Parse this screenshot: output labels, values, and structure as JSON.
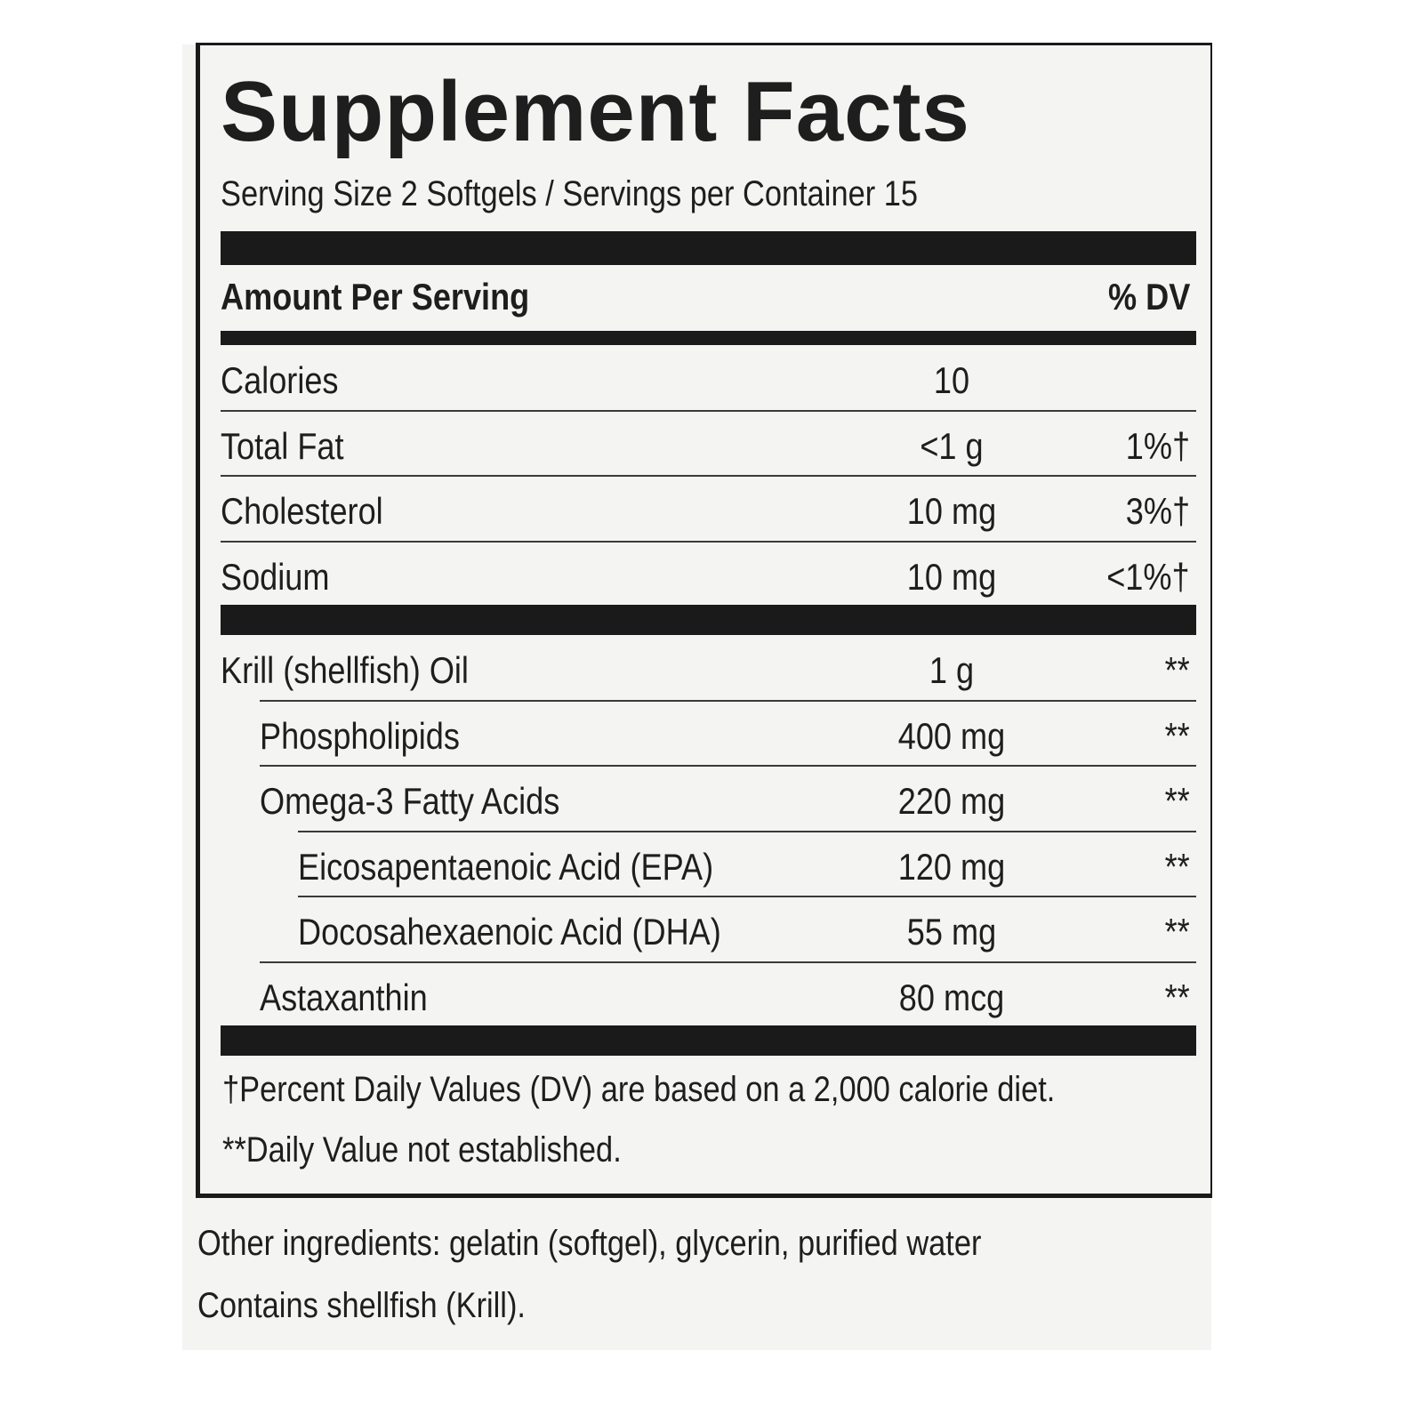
{
  "label": {
    "title": "Supplement Facts",
    "serving": "Serving Size 2 Softgels / Servings per Container 15",
    "header": {
      "left": "Amount Per Serving",
      "right": "% DV"
    },
    "sections": [
      [
        {
          "name": "Calories",
          "amount": "10"
        },
        {
          "name": "Total Fat",
          "amount": "<1 g",
          "dv": "1%†"
        },
        {
          "name": "Cholesterol",
          "amount": "10 mg",
          "dv": "3%†"
        },
        {
          "name": "Sodium",
          "amount": "10 mg",
          "dv": "<1%†"
        }
      ],
      [
        {
          "name": "Krill (shellfish) Oil",
          "amount": "1 g",
          "dv": "**",
          "children": [
            {
              "name": "Phospholipids",
              "amount": "400 mg",
              "dv": "**"
            },
            {
              "name": "Omega-3 Fatty Acids",
              "amount": "220 mg",
              "dv": "**",
              "children": [
                {
                  "name": "Eicosapentaenoic Acid (EPA)",
                  "amount": "120 mg",
                  "dv": "**"
                },
                {
                  "name": "Docosahexaenoic Acid (DHA)",
                  "amount": "55 mg",
                  "dv": "**"
                }
              ]
            },
            {
              "name": "Astaxanthin",
              "amount": "80 mcg",
              "dv": "**"
            }
          ]
        }
      ]
    ],
    "footnotes": [
      "†Percent Daily Values (DV) are based on a 2,000 calorie diet.",
      "**Daily Value not established."
    ]
  },
  "other_ingredients": [
    "Other ingredients: gelatin (softgel), glycerin, purified water",
    "Contains shellfish (Krill)."
  ]
}
